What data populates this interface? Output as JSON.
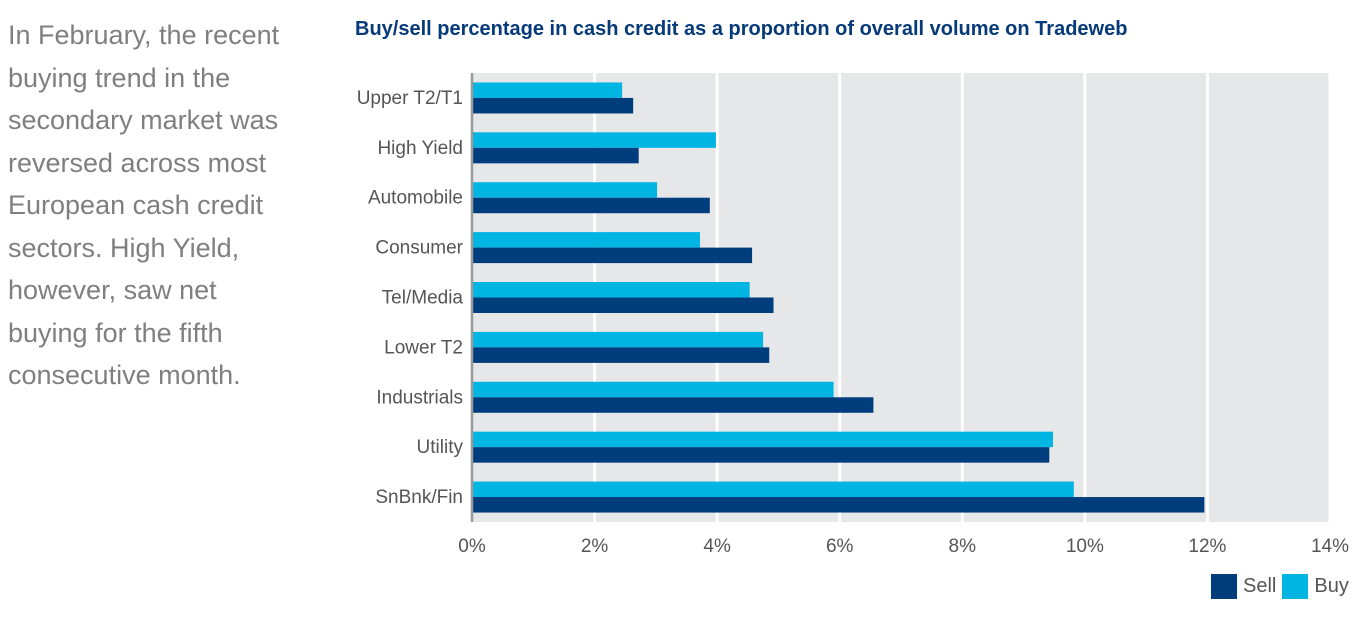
{
  "intro_text": "In February, the recent\nbuying trend in the\nsecondary market was\nreversed across most\nEuropean cash credit\nsectors. High Yield,\nhowever, saw net\nbuying for the fifth\nconsecutive month.",
  "colors": {
    "sell": "#003d7c",
    "buy": "#00b5e2",
    "plot_bg": "#e6e7e9",
    "grid": "#ffffff",
    "axis": "#999999",
    "label": "#555555"
  },
  "legend": {
    "sell": "Sell",
    "buy": "Buy"
  },
  "chart_data": {
    "type": "bar",
    "orientation": "horizontal",
    "title": "Buy/sell percentage in cash credit as a proportion of overall volume on Tradeweb",
    "categories": [
      "Upper T2/T1",
      "High Yield",
      "Automobile",
      "Consumer",
      "Tel/Media",
      "Lower T2",
      "Industrials",
      "Utility",
      "SnBnk/Fin"
    ],
    "series": [
      {
        "name": "Buy",
        "values": [
          2.45,
          3.98,
          3.02,
          3.72,
          4.53,
          4.75,
          5.9,
          9.48,
          9.82
        ]
      },
      {
        "name": "Sell",
        "values": [
          2.63,
          2.72,
          3.88,
          4.57,
          4.92,
          4.85,
          6.55,
          9.42,
          11.95
        ]
      }
    ],
    "xlim": [
      0,
      14
    ],
    "xticks": [
      "0%",
      "2%",
      "4%",
      "6%",
      "8%",
      "10%",
      "12%",
      "14%"
    ],
    "xlabel": "",
    "ylabel": "",
    "grid": true,
    "legend_position": "bottom-right"
  }
}
